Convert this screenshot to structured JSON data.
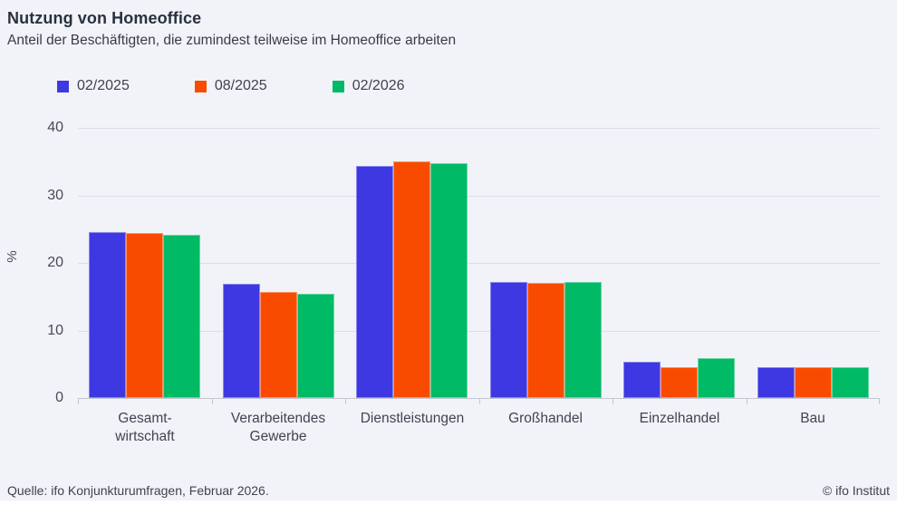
{
  "header": {
    "title": "Nutzung von Homeoffice",
    "subtitle": "Anteil der Beschäftigten, die zumindest teilweise im Homeoffice arbeiten"
  },
  "footer": {
    "source": "Quelle: ifo Konjunkturumfragen, Februar 2026.",
    "copyright": "© ifo Institut"
  },
  "colors": {
    "background": "#f2f3f8",
    "gridline": "#dcdee6",
    "axis": "#c4c7d2",
    "title_text": "#293140",
    "body_text": "#3d434f"
  },
  "chart_data": {
    "type": "bar",
    "title": "Nutzung von Homeoffice",
    "subtitle": "Anteil der Beschäftigten, die zumindest teilweise im Homeoffice arbeiten",
    "categories": [
      "Gesamt-\nwirtschaft",
      "Verarbeitendes\nGewerbe",
      "Dienstleistungen",
      "Großhandel",
      "Einzelhandel",
      "Bau"
    ],
    "series": [
      {
        "name": "02/2025",
        "color": "#3d38e1",
        "values": [
          24.5,
          16.9,
          34.3,
          17.2,
          5.4,
          4.6
        ]
      },
      {
        "name": "08/2025",
        "color": "#f94b00",
        "values": [
          24.4,
          15.7,
          35.0,
          17.0,
          4.5,
          4.5
        ]
      },
      {
        "name": "02/2026",
        "color": "#00ba65",
        "values": [
          24.2,
          15.4,
          34.8,
          17.2,
          5.9,
          4.6
        ]
      }
    ],
    "xlabel": "",
    "ylabel": "%",
    "yticks": [
      0,
      10,
      20,
      30,
      40
    ],
    "ylim": [
      0,
      40
    ],
    "grid": true,
    "legend_position": "top-left"
  }
}
